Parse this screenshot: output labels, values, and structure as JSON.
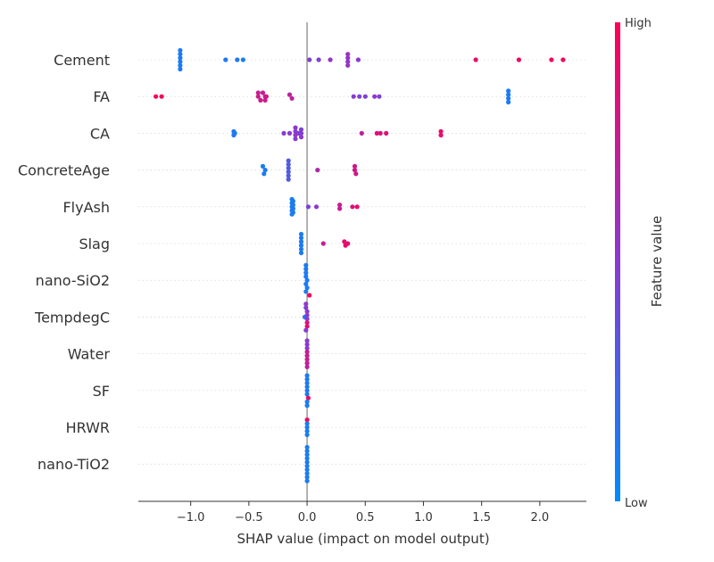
{
  "chart_data": {
    "type": "scatter",
    "subtype": "shap-beeswarm",
    "xlabel": "SHAP value (impact on model output)",
    "xlim": [
      -1.45,
      2.4
    ],
    "x_ticks": [
      -1.0,
      -0.5,
      0.0,
      0.5,
      1.0,
      1.5,
      2.0
    ],
    "x_tick_labels": [
      "−1.0",
      "−0.5",
      "0.0",
      "0.5",
      "1.0",
      "1.5",
      "2.0"
    ],
    "colorbar": {
      "label": "Feature value",
      "high_label": "High",
      "low_label": "Low",
      "low_color": "#008bfb",
      "mid_color": "#8a3ad0",
      "high_color": "#ff0052"
    },
    "features": [
      {
        "name": "Cement",
        "points": [
          [
            -1.09,
            0.1
          ],
          [
            -1.09,
            0.1
          ],
          [
            -1.09,
            0.1
          ],
          [
            -1.09,
            0.1
          ],
          [
            -1.09,
            0.1
          ],
          [
            -1.09,
            0.1
          ],
          [
            -0.7,
            0.1
          ],
          [
            -0.6,
            0.1
          ],
          [
            -0.55,
            0.1
          ],
          [
            0.02,
            0.45
          ],
          [
            0.1,
            0.45
          ],
          [
            0.2,
            0.55
          ],
          [
            0.35,
            0.55
          ],
          [
            0.35,
            0.55
          ],
          [
            0.35,
            0.55
          ],
          [
            0.35,
            0.55
          ],
          [
            0.44,
            0.5
          ],
          [
            1.45,
            0.9
          ],
          [
            1.82,
            0.95
          ],
          [
            2.1,
            0.95
          ],
          [
            2.2,
            0.95
          ]
        ]
      },
      {
        "name": "FA",
        "points": [
          [
            -1.3,
            0.95
          ],
          [
            -1.25,
            0.95
          ],
          [
            -0.42,
            0.75
          ],
          [
            -0.38,
            0.75
          ],
          [
            -0.36,
            0.75
          ],
          [
            -0.42,
            0.78
          ],
          [
            -0.4,
            0.78
          ],
          [
            -0.36,
            0.78
          ],
          [
            -0.35,
            0.78
          ],
          [
            -0.15,
            0.7
          ],
          [
            -0.13,
            0.7
          ],
          [
            0.4,
            0.5
          ],
          [
            0.45,
            0.45
          ],
          [
            0.5,
            0.45
          ],
          [
            0.58,
            0.5
          ],
          [
            0.62,
            0.45
          ],
          [
            1.73,
            0.1
          ],
          [
            1.73,
            0.1
          ],
          [
            1.73,
            0.1
          ],
          [
            1.73,
            0.1
          ]
        ]
      },
      {
        "name": "CA",
        "points": [
          [
            -0.63,
            0.1
          ],
          [
            -0.62,
            0.1
          ],
          [
            -0.63,
            0.1
          ],
          [
            -0.2,
            0.5
          ],
          [
            -0.15,
            0.5
          ],
          [
            -0.1,
            0.5
          ],
          [
            -0.07,
            0.45
          ],
          [
            -0.05,
            0.45
          ],
          [
            -0.1,
            0.48
          ],
          [
            -0.05,
            0.48
          ],
          [
            -0.1,
            0.52
          ],
          [
            -0.05,
            0.5
          ],
          [
            -0.1,
            0.48
          ],
          [
            0.47,
            0.7
          ],
          [
            0.6,
            0.85
          ],
          [
            0.63,
            0.85
          ],
          [
            0.68,
            0.85
          ],
          [
            1.15,
            0.9
          ],
          [
            1.15,
            0.9
          ]
        ]
      },
      {
        "name": "ConcreteAge",
        "points": [
          [
            -0.38,
            0.1
          ],
          [
            -0.36,
            0.1
          ],
          [
            -0.37,
            0.1
          ],
          [
            -0.16,
            0.3
          ],
          [
            -0.16,
            0.3
          ],
          [
            -0.16,
            0.3
          ],
          [
            -0.16,
            0.3
          ],
          [
            -0.16,
            0.3
          ],
          [
            -0.16,
            0.3
          ],
          [
            0.09,
            0.65
          ],
          [
            0.41,
            0.8
          ],
          [
            0.41,
            0.8
          ],
          [
            0.42,
            0.8
          ]
        ]
      },
      {
        "name": "FlyAsh",
        "points": [
          [
            -0.13,
            0.1
          ],
          [
            -0.13,
            0.1
          ],
          [
            -0.12,
            0.1
          ],
          [
            -0.13,
            0.1
          ],
          [
            -0.12,
            0.1
          ],
          [
            -0.13,
            0.1
          ],
          [
            -0.12,
            0.1
          ],
          [
            -0.13,
            0.1
          ],
          [
            -0.12,
            0.1
          ],
          [
            0.01,
            0.45
          ],
          [
            0.08,
            0.5
          ],
          [
            0.28,
            0.75
          ],
          [
            0.28,
            0.75
          ],
          [
            0.39,
            0.85
          ],
          [
            0.43,
            0.9
          ]
        ]
      },
      {
        "name": "Slag",
        "points": [
          [
            -0.05,
            0.1
          ],
          [
            -0.05,
            0.1
          ],
          [
            -0.05,
            0.1
          ],
          [
            -0.05,
            0.1
          ],
          [
            -0.05,
            0.1
          ],
          [
            -0.05,
            0.1
          ],
          [
            0.14,
            0.75
          ],
          [
            0.32,
            0.9
          ],
          [
            0.33,
            0.9
          ],
          [
            0.35,
            0.9
          ]
        ]
      },
      {
        "name": "nano-SiO2",
        "points": [
          [
            -0.01,
            0.1
          ],
          [
            -0.01,
            0.1
          ],
          [
            -0.01,
            0.1
          ],
          [
            -0.01,
            0.1
          ],
          [
            0.0,
            0.1
          ],
          [
            -0.01,
            0.1
          ],
          [
            0.0,
            0.1
          ],
          [
            -0.01,
            0.1
          ],
          [
            0.02,
            0.95
          ]
        ]
      },
      {
        "name": "TempdegC",
        "points": [
          [
            -0.02,
            0.1
          ],
          [
            -0.01,
            0.5
          ],
          [
            -0.01,
            0.5
          ],
          [
            0.0,
            0.5
          ],
          [
            0.0,
            0.5
          ],
          [
            0.0,
            0.5
          ],
          [
            0.0,
            0.85
          ],
          [
            0.0,
            0.9
          ],
          [
            -0.01,
            0.5
          ]
        ]
      },
      {
        "name": "Water",
        "points": [
          [
            0.0,
            0.5
          ],
          [
            0.0,
            0.5
          ],
          [
            0.0,
            0.5
          ],
          [
            0.0,
            0.75
          ],
          [
            0.0,
            0.75
          ],
          [
            0.0,
            0.75
          ],
          [
            0.0,
            0.75
          ],
          [
            0.0,
            0.7
          ]
        ]
      },
      {
        "name": "SF",
        "points": [
          [
            0.0,
            0.1
          ],
          [
            0.0,
            0.1
          ],
          [
            0.0,
            0.1
          ],
          [
            0.0,
            0.1
          ],
          [
            0.0,
            0.1
          ],
          [
            0.0,
            0.1
          ],
          [
            0.01,
            0.95
          ],
          [
            0.0,
            0.1
          ],
          [
            0.0,
            0.1
          ]
        ]
      },
      {
        "name": "HRWR",
        "points": [
          [
            0.0,
            0.95
          ],
          [
            0.0,
            0.1
          ],
          [
            0.0,
            0.1
          ],
          [
            0.0,
            0.1
          ],
          [
            0.0,
            0.1
          ]
        ]
      },
      {
        "name": "nano-TiO2",
        "points": [
          [
            0.0,
            0.1
          ],
          [
            0.0,
            0.1
          ],
          [
            0.0,
            0.1
          ],
          [
            0.0,
            0.1
          ],
          [
            0.0,
            0.1
          ],
          [
            0.0,
            0.1
          ],
          [
            0.0,
            0.1
          ],
          [
            0.0,
            0.1
          ],
          [
            0.0,
            0.1
          ],
          [
            0.0,
            0.1
          ]
        ]
      }
    ]
  }
}
